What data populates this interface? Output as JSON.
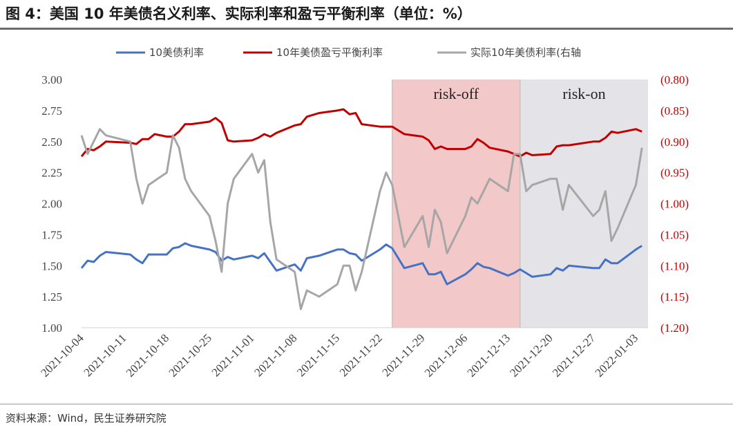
{
  "title": "图 4：美国 10 年美债名义利率、实际利率和盈亏平衡利率（单位：%）",
  "source": "资料来源：Wind，民生证券研究院",
  "chart_data": {
    "type": "line",
    "left_axis": {
      "min": 1.0,
      "max": 3.0,
      "ticks": [
        "1.00",
        "1.25",
        "1.50",
        "1.75",
        "2.00",
        "2.25",
        "2.50",
        "2.75",
        "3.00"
      ]
    },
    "right_axis": {
      "min": -1.2,
      "max": -0.8,
      "ticks": [
        "(1.20)",
        "(1.15)",
        "(1.10)",
        "(1.05)",
        "(1.00)",
        "(0.95)",
        "(0.90)",
        "(0.85)",
        "(0.80)"
      ],
      "color": "#c00000"
    },
    "x_range": [
      "2021-10-04",
      "2022-01-05"
    ],
    "x_ticks": [
      "2021-10-04",
      "2021-10-11",
      "2021-10-18",
      "2021-10-25",
      "2021-11-01",
      "2021-11-08",
      "2021-11-15",
      "2021-11-22",
      "2021-11-29",
      "2021-12-06",
      "2021-12-13",
      "2021-12-20",
      "2021-12-27",
      "2022-01-03"
    ],
    "legend": {
      "position": "top"
    },
    "regions": [
      {
        "label": "risk-off",
        "from": "2021-11-24",
        "to": "2021-12-15",
        "color": "#f2c8c8"
      },
      {
        "label": "risk-on",
        "from": "2021-12-15",
        "to": "2022-01-05",
        "color": "#e4e4e8"
      }
    ],
    "series": [
      {
        "name": "10美债利率",
        "axis": "left",
        "color": "#4472c4",
        "points": [
          [
            "2021-10-04",
            1.48
          ],
          [
            "2021-10-05",
            1.54
          ],
          [
            "2021-10-06",
            1.53
          ],
          [
            "2021-10-07",
            1.58
          ],
          [
            "2021-10-08",
            1.61
          ],
          [
            "2021-10-12",
            1.59
          ],
          [
            "2021-10-13",
            1.55
          ],
          [
            "2021-10-14",
            1.52
          ],
          [
            "2021-10-15",
            1.59
          ],
          [
            "2021-10-18",
            1.59
          ],
          [
            "2021-10-19",
            1.64
          ],
          [
            "2021-10-20",
            1.65
          ],
          [
            "2021-10-21",
            1.68
          ],
          [
            "2021-10-22",
            1.66
          ],
          [
            "2021-10-25",
            1.63
          ],
          [
            "2021-10-26",
            1.61
          ],
          [
            "2021-10-27",
            1.54
          ],
          [
            "2021-10-28",
            1.57
          ],
          [
            "2021-10-29",
            1.55
          ],
          [
            "2021-11-01",
            1.58
          ],
          [
            "2021-11-02",
            1.56
          ],
          [
            "2021-11-03",
            1.6
          ],
          [
            "2021-11-04",
            1.53
          ],
          [
            "2021-11-05",
            1.46
          ],
          [
            "2021-11-08",
            1.51
          ],
          [
            "2021-11-09",
            1.46
          ],
          [
            "2021-11-10",
            1.56
          ],
          [
            "2021-11-12",
            1.58
          ],
          [
            "2021-11-15",
            1.63
          ],
          [
            "2021-11-16",
            1.63
          ],
          [
            "2021-11-17",
            1.6
          ],
          [
            "2021-11-18",
            1.59
          ],
          [
            "2021-11-19",
            1.54
          ],
          [
            "2021-11-22",
            1.63
          ],
          [
            "2021-11-23",
            1.67
          ],
          [
            "2021-11-24",
            1.64
          ],
          [
            "2021-11-26",
            1.48
          ],
          [
            "2021-11-29",
            1.52
          ],
          [
            "2021-11-30",
            1.43
          ],
          [
            "2021-12-01",
            1.43
          ],
          [
            "2021-12-02",
            1.45
          ],
          [
            "2021-12-03",
            1.35
          ],
          [
            "2021-12-06",
            1.43
          ],
          [
            "2021-12-07",
            1.47
          ],
          [
            "2021-12-08",
            1.52
          ],
          [
            "2021-12-09",
            1.49
          ],
          [
            "2021-12-10",
            1.48
          ],
          [
            "2021-12-13",
            1.42
          ],
          [
            "2021-12-14",
            1.44
          ],
          [
            "2021-12-15",
            1.47
          ],
          [
            "2021-12-16",
            1.44
          ],
          [
            "2021-12-17",
            1.41
          ],
          [
            "2021-12-20",
            1.43
          ],
          [
            "2021-12-21",
            1.48
          ],
          [
            "2021-12-22",
            1.46
          ],
          [
            "2021-12-23",
            1.5
          ],
          [
            "2021-12-27",
            1.48
          ],
          [
            "2021-12-28",
            1.48
          ],
          [
            "2021-12-29",
            1.55
          ],
          [
            "2021-12-30",
            1.52
          ],
          [
            "2021-12-31",
            1.52
          ],
          [
            "2022-01-03",
            1.63
          ],
          [
            "2022-01-04",
            1.66
          ]
        ]
      },
      {
        "name": "10年美债盈亏平衡利率",
        "axis": "left",
        "color": "#c00000",
        "points": [
          [
            "2021-10-04",
            2.38
          ],
          [
            "2021-10-05",
            2.44
          ],
          [
            "2021-10-06",
            2.43
          ],
          [
            "2021-10-07",
            2.46
          ],
          [
            "2021-10-08",
            2.5
          ],
          [
            "2021-10-12",
            2.49
          ],
          [
            "2021-10-13",
            2.48
          ],
          [
            "2021-10-14",
            2.52
          ],
          [
            "2021-10-15",
            2.52
          ],
          [
            "2021-10-16",
            2.56
          ],
          [
            "2021-10-18",
            2.54
          ],
          [
            "2021-10-19",
            2.54
          ],
          [
            "2021-10-20",
            2.58
          ],
          [
            "2021-10-21",
            2.64
          ],
          [
            "2021-10-22",
            2.64
          ],
          [
            "2021-10-25",
            2.66
          ],
          [
            "2021-10-26",
            2.69
          ],
          [
            "2021-10-27",
            2.65
          ],
          [
            "2021-10-28",
            2.51
          ],
          [
            "2021-10-29",
            2.5
          ],
          [
            "2021-11-01",
            2.51
          ],
          [
            "2021-11-02",
            2.53
          ],
          [
            "2021-11-03",
            2.56
          ],
          [
            "2021-11-04",
            2.54
          ],
          [
            "2021-11-05",
            2.57
          ],
          [
            "2021-11-08",
            2.63
          ],
          [
            "2021-11-09",
            2.64
          ],
          [
            "2021-11-10",
            2.7
          ],
          [
            "2021-11-12",
            2.73
          ],
          [
            "2021-11-15",
            2.75
          ],
          [
            "2021-11-16",
            2.76
          ],
          [
            "2021-11-17",
            2.72
          ],
          [
            "2021-11-18",
            2.73
          ],
          [
            "2021-11-19",
            2.64
          ],
          [
            "2021-11-22",
            2.62
          ],
          [
            "2021-11-23",
            2.62
          ],
          [
            "2021-11-24",
            2.62
          ],
          [
            "2021-11-26",
            2.56
          ],
          [
            "2021-11-29",
            2.54
          ],
          [
            "2021-11-30",
            2.51
          ],
          [
            "2021-12-01",
            2.44
          ],
          [
            "2021-12-02",
            2.46
          ],
          [
            "2021-12-03",
            2.44
          ],
          [
            "2021-12-06",
            2.44
          ],
          [
            "2021-12-07",
            2.46
          ],
          [
            "2021-12-08",
            2.52
          ],
          [
            "2021-12-09",
            2.49
          ],
          [
            "2021-12-10",
            2.45
          ],
          [
            "2021-12-13",
            2.42
          ],
          [
            "2021-12-14",
            2.4
          ],
          [
            "2021-12-15",
            2.38
          ],
          [
            "2021-12-16",
            2.41
          ],
          [
            "2021-12-17",
            2.39
          ],
          [
            "2021-12-20",
            2.4
          ],
          [
            "2021-12-21",
            2.46
          ],
          [
            "2021-12-22",
            2.47
          ],
          [
            "2021-12-23",
            2.47
          ],
          [
            "2021-12-27",
            2.5
          ],
          [
            "2021-12-28",
            2.5
          ],
          [
            "2021-12-29",
            2.53
          ],
          [
            "2021-12-30",
            2.58
          ],
          [
            "2021-12-31",
            2.57
          ],
          [
            "2022-01-03",
            2.6
          ],
          [
            "2022-01-04",
            2.58
          ]
        ]
      },
      {
        "name": "实际10年美债利率(右轴",
        "axis": "right",
        "color": "#a6a6a6",
        "points": [
          [
            "2021-10-04",
            -0.89
          ],
          [
            "2021-10-05",
            -0.92
          ],
          [
            "2021-10-06",
            -0.9
          ],
          [
            "2021-10-07",
            -0.88
          ],
          [
            "2021-10-08",
            -0.89
          ],
          [
            "2021-10-12",
            -0.9
          ],
          [
            "2021-10-13",
            -0.96
          ],
          [
            "2021-10-14",
            -1.0
          ],
          [
            "2021-10-15",
            -0.97
          ],
          [
            "2021-10-18",
            -0.95
          ],
          [
            "2021-10-19",
            -0.89
          ],
          [
            "2021-10-20",
            -0.91
          ],
          [
            "2021-10-21",
            -0.96
          ],
          [
            "2021-10-22",
            -0.98
          ],
          [
            "2021-10-25",
            -1.02
          ],
          [
            "2021-10-26",
            -1.06
          ],
          [
            "2021-10-27",
            -1.11
          ],
          [
            "2021-10-28",
            -1.0
          ],
          [
            "2021-10-29",
            -0.96
          ],
          [
            "2021-11-01",
            -0.92
          ],
          [
            "2021-11-02",
            -0.95
          ],
          [
            "2021-11-03",
            -0.93
          ],
          [
            "2021-11-04",
            -1.03
          ],
          [
            "2021-11-05",
            -1.09
          ],
          [
            "2021-11-08",
            -1.11
          ],
          [
            "2021-11-09",
            -1.17
          ],
          [
            "2021-11-10",
            -1.14
          ],
          [
            "2021-11-12",
            -1.15
          ],
          [
            "2021-11-15",
            -1.13
          ],
          [
            "2021-11-16",
            -1.1
          ],
          [
            "2021-11-17",
            -1.1
          ],
          [
            "2021-11-18",
            -1.14
          ],
          [
            "2021-11-19",
            -1.11
          ],
          [
            "2021-11-22",
            -0.98
          ],
          [
            "2021-11-23",
            -0.95
          ],
          [
            "2021-11-24",
            -0.97
          ],
          [
            "2021-11-26",
            -1.07
          ],
          [
            "2021-11-29",
            -1.02
          ],
          [
            "2021-11-30",
            -1.07
          ],
          [
            "2021-12-01",
            -1.01
          ],
          [
            "2021-12-02",
            -1.03
          ],
          [
            "2021-12-03",
            -1.08
          ],
          [
            "2021-12-06",
            -1.02
          ],
          [
            "2021-12-07",
            -0.99
          ],
          [
            "2021-12-08",
            -1.0
          ],
          [
            "2021-12-10",
            -0.96
          ],
          [
            "2021-12-13",
            -0.98
          ],
          [
            "2021-12-14",
            -0.92
          ],
          [
            "2021-12-15",
            -0.92
          ],
          [
            "2021-12-16",
            -0.98
          ],
          [
            "2021-12-17",
            -0.97
          ],
          [
            "2021-12-20",
            -0.96
          ],
          [
            "2021-12-21",
            -0.96
          ],
          [
            "2021-12-22",
            -1.01
          ],
          [
            "2021-12-23",
            -0.97
          ],
          [
            "2021-12-27",
            -1.02
          ],
          [
            "2021-12-28",
            -1.01
          ],
          [
            "2021-12-29",
            -0.98
          ],
          [
            "2021-12-30",
            -1.06
          ],
          [
            "2021-12-31",
            -1.04
          ],
          [
            "2022-01-03",
            -0.97
          ],
          [
            "2022-01-04",
            -0.91
          ]
        ]
      }
    ]
  }
}
